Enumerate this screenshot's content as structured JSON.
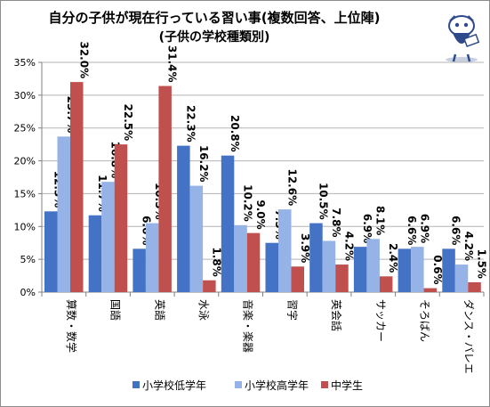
{
  "chart_data": {
    "type": "bar",
    "title": "自分の子供が現在行っている習い事(複数回答、上位陣)",
    "subtitle": "(子供の学校種類別)",
    "categories": [
      "算数・数学",
      "国語",
      "英語",
      "水泳",
      "音楽・楽器",
      "習字",
      "英会話",
      "サッカー",
      "そろばん",
      "ダンス・バレエ"
    ],
    "series": [
      {
        "name": "小学校低学年",
        "color": "#4472c4",
        "values": [
          12.3,
          11.7,
          6.6,
          22.3,
          20.8,
          7.5,
          10.5,
          6.9,
          6.6,
          6.6
        ]
      },
      {
        "name": "小学校高学年",
        "color": "#95b3e6",
        "values": [
          23.7,
          16.8,
          10.5,
          16.2,
          10.2,
          12.6,
          7.8,
          8.1,
          6.9,
          4.2
        ]
      },
      {
        "name": "中学生",
        "color": "#c0504d",
        "values": [
          32.0,
          22.5,
          31.4,
          1.8,
          9.0,
          3.9,
          4.2,
          2.4,
          0.6,
          1.5
        ]
      }
    ],
    "ylim": [
      0,
      35
    ],
    "yticks": [
      0,
      5,
      10,
      15,
      20,
      25,
      30,
      35
    ],
    "tick_suffix": "%",
    "grid": true,
    "legend": "bottom"
  }
}
